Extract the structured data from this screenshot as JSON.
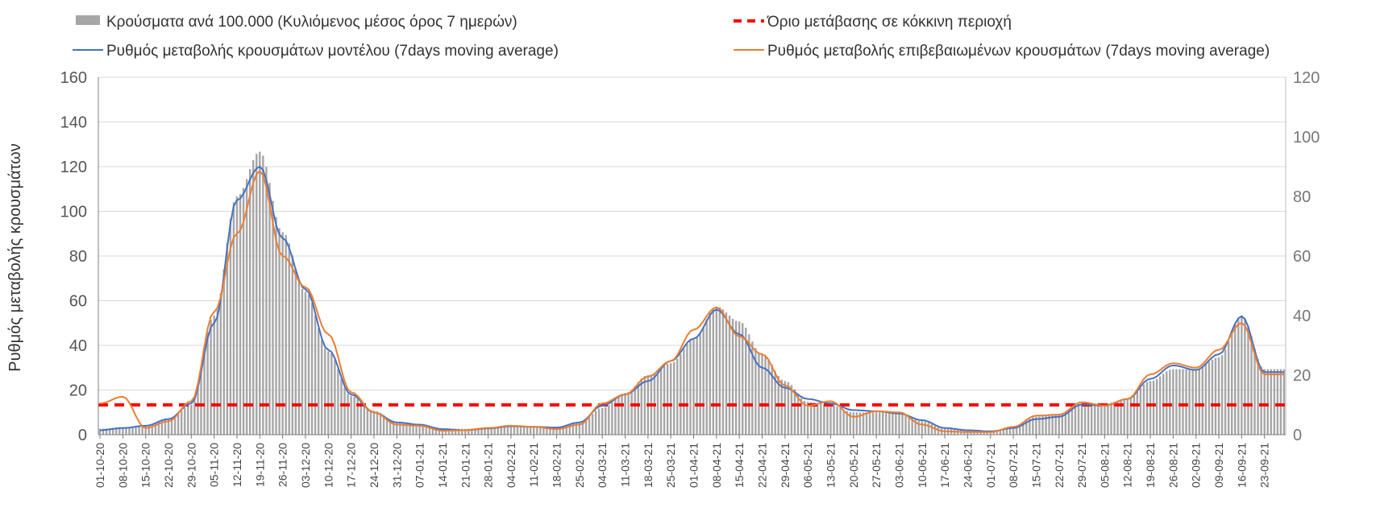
{
  "chart_data": {
    "type": "bar+line",
    "ylabel": "Ρυθμός μεταβολής κρουσμάτων",
    "y_left": {
      "min": 0,
      "max": 160,
      "ticks": [
        "0",
        "20",
        "40",
        "60",
        "80",
        "100",
        "120",
        "140",
        "160"
      ]
    },
    "y_right": {
      "min": 0,
      "max": 120,
      "ticks": [
        "0",
        "20",
        "40",
        "60",
        "80",
        "100",
        "120"
      ]
    },
    "grid": true,
    "legend_position": "top",
    "x_tick_labels": [
      "01-10-20",
      "08-10-20",
      "15-10-20",
      "22-10-20",
      "29-10-20",
      "05-11-20",
      "12-11-20",
      "19-11-20",
      "26-11-20",
      "03-12-20",
      "10-12-20",
      "17-12-20",
      "24-12-20",
      "31-12-20",
      "07-01-21",
      "14-01-21",
      "21-01-21",
      "28-01-21",
      "04-02-21",
      "11-02-21",
      "18-02-21",
      "25-02-21",
      "04-03-21",
      "11-03-21",
      "18-03-21",
      "25-03-21",
      "01-04-21",
      "08-04-21",
      "15-04-21",
      "22-04-21",
      "29-04-21",
      "06-05-21",
      "13-05-21",
      "20-05-21",
      "27-05-21",
      "03-06-21",
      "10-06-21",
      "17-06-21",
      "24-06-21",
      "01-07-21",
      "08-07-21",
      "15-07-21",
      "22-07-21",
      "29-07-21",
      "05-08-21",
      "12-08-21",
      "19-08-21",
      "26-08-21",
      "02-09-21",
      "09-09-21",
      "16-09-21",
      "23-09-21"
    ],
    "series": [
      {
        "name": "Κρούσματα ανά 100.000 (Κυλιόμενος μέσος όρος 7 ημερών)",
        "kind": "bar",
        "axis": "right",
        "color": "#a6a6a6",
        "weekly_values": [
          2,
          2.5,
          3,
          5,
          10,
          40,
          80,
          95,
          68,
          48,
          28,
          13,
          8,
          4,
          3.5,
          2,
          2,
          2.5,
          3,
          2.5,
          2.5,
          4,
          9,
          14,
          20,
          24,
          32,
          43,
          38,
          27,
          18,
          11,
          10,
          7.5,
          7.5,
          7,
          4.5,
          2,
          1.5,
          1.2,
          2.5,
          6,
          7,
          10.5,
          10.5,
          12,
          18,
          22,
          22,
          26,
          40,
          22
        ]
      },
      {
        "name": "Ρυθμός μεταβολής κρουσμάτων μοντέλου (7days moving average)",
        "kind": "line",
        "axis": "left",
        "color": "#4472c4",
        "weekly_values": [
          2,
          3,
          4,
          7,
          14,
          50,
          105,
          120,
          88,
          65,
          38,
          18,
          10,
          5.5,
          4.5,
          2.5,
          2,
          2.8,
          3.8,
          3.5,
          3.2,
          5.5,
          13,
          18,
          24,
          33,
          43,
          56,
          45,
          30,
          21,
          16,
          14,
          11,
          10.5,
          9.5,
          6.5,
          3,
          2,
          1.5,
          3,
          7,
          8,
          13.5,
          13,
          16,
          25,
          31,
          29,
          36,
          53,
          28
        ]
      },
      {
        "name": "Ρυθμός μεταβολής επιβεβαιωμένων κρουσμάτων (7days moving average)",
        "kind": "line",
        "axis": "left",
        "color": "#ed7d31",
        "weekly_values": [
          14,
          17,
          3,
          6,
          15,
          55,
          90,
          118,
          80,
          66,
          45,
          19,
          10,
          4.5,
          4,
          1.8,
          2,
          3,
          4,
          3.5,
          2.5,
          4.5,
          14,
          18,
          26,
          33,
          47,
          57,
          44,
          36,
          22,
          13,
          15,
          8,
          10.5,
          10,
          4.5,
          1.5,
          1.2,
          1.2,
          3.5,
          8.5,
          9,
          14.5,
          13,
          16,
          27,
          32,
          30,
          38,
          50,
          27
        ]
      },
      {
        "name": "Όριο μετάβασης σε κόκκινη περιοχή",
        "kind": "threshold",
        "axis": "right",
        "color": "#ff0000",
        "value": 10
      }
    ]
  }
}
